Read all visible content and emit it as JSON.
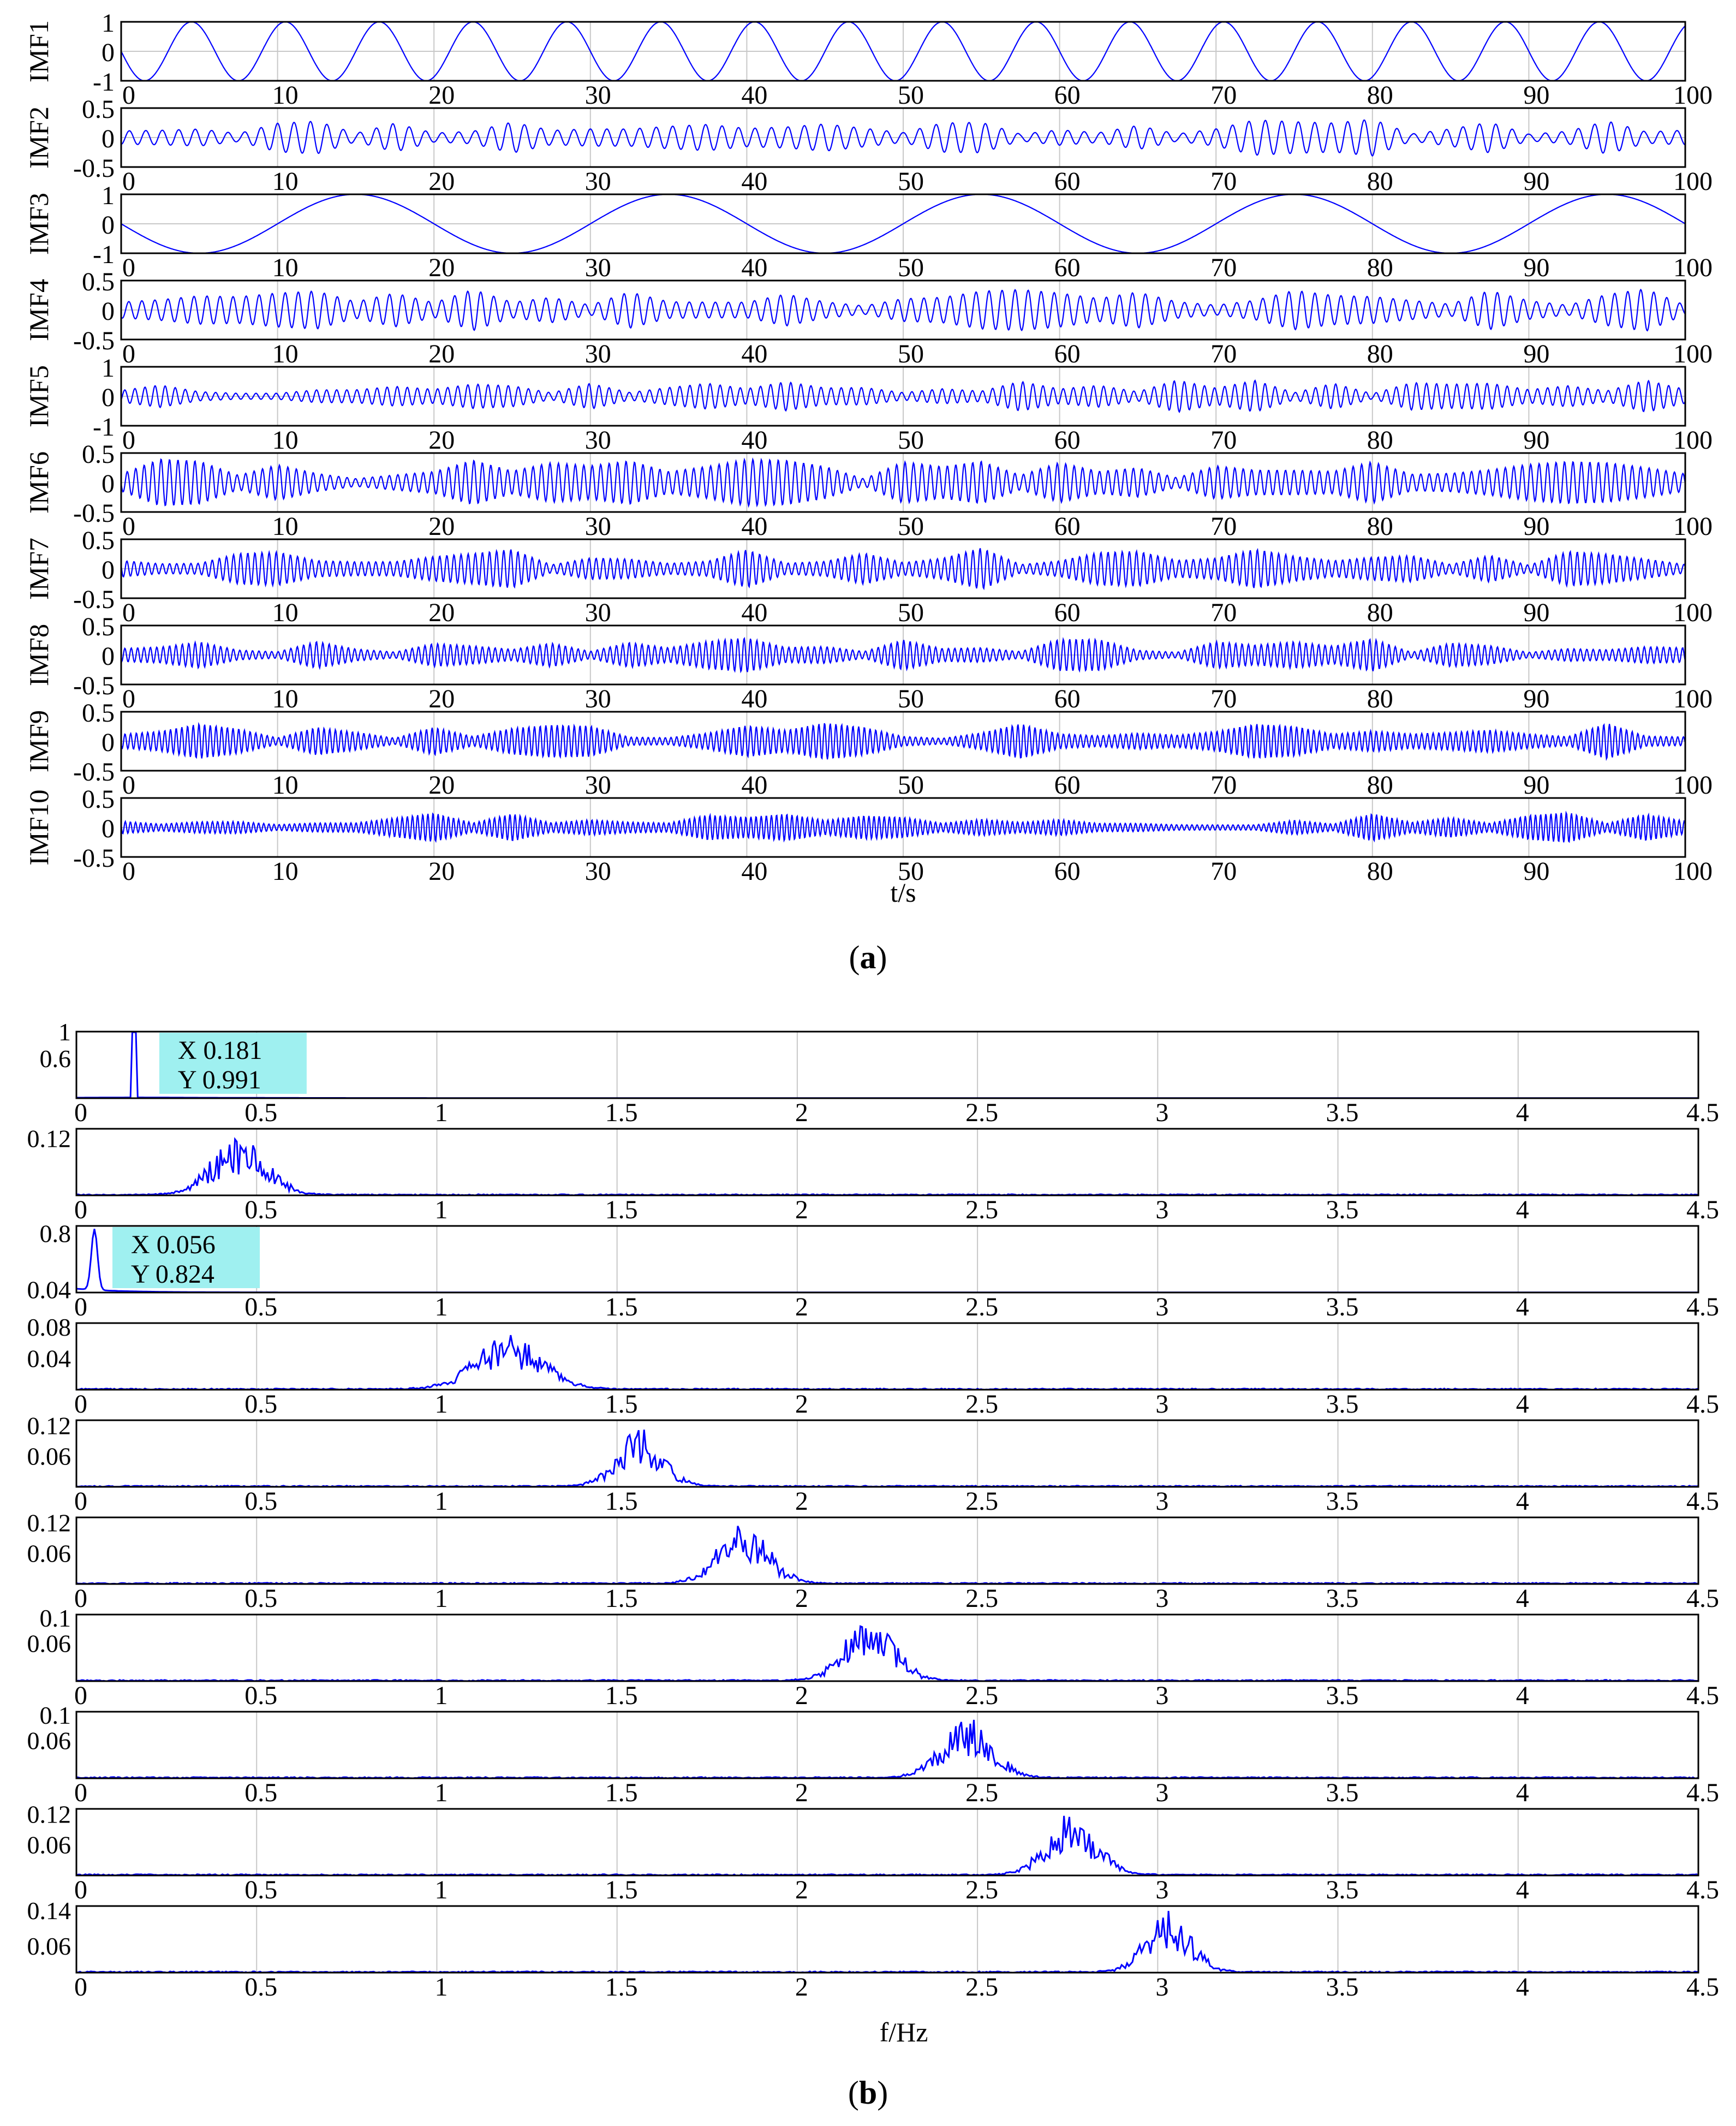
{
  "captions": {
    "a": "a",
    "b": "b"
  },
  "colors": {
    "signal": "#0000ff",
    "grid": "#c8c8c8",
    "axis": "#000000",
    "datatip": "#9ff0f0"
  },
  "chart_data": [
    {
      "type": "line",
      "id": "a",
      "xlabel": "t/s",
      "xlim": [
        0,
        100
      ],
      "xticks": [
        0,
        10,
        20,
        30,
        40,
        50,
        60,
        70,
        80,
        90,
        100
      ],
      "grid": true,
      "series": [
        {
          "name": "IMF1",
          "ylim": [
            -1,
            1
          ],
          "yticks": [
            "1",
            "0",
            "-1"
          ],
          "kind": "sine",
          "period": 6,
          "amp": 1
        },
        {
          "name": "IMF2",
          "ylim": [
            -0.5,
            0.5
          ],
          "yticks": [
            "0.5",
            "0",
            "-0.5"
          ],
          "kind": "am",
          "carrier": 0.95,
          "amp": 0.32,
          "seed": 11
        },
        {
          "name": "IMF3",
          "ylim": [
            -1,
            1
          ],
          "yticks": [
            "1",
            "0",
            "-1"
          ],
          "kind": "sine",
          "period": 20,
          "amp": 1
        },
        {
          "name": "IMF4",
          "ylim": [
            -0.5,
            0.5
          ],
          "yticks": [
            "0.5",
            "0",
            "-0.5"
          ],
          "kind": "am",
          "carrier": 1.2,
          "amp": 0.38,
          "seed": 23
        },
        {
          "name": "IMF5",
          "ylim": [
            -1,
            1
          ],
          "yticks": [
            "1",
            "0",
            "-1"
          ],
          "kind": "am",
          "carrier": 1.55,
          "amp": 0.55,
          "seed": 37
        },
        {
          "name": "IMF6",
          "ylim": [
            -0.5,
            0.5
          ],
          "yticks": [
            "0.5",
            "0",
            "-0.5"
          ],
          "kind": "am",
          "carrier": 1.85,
          "amp": 0.4,
          "seed": 41
        },
        {
          "name": "IMF7",
          "ylim": [
            -0.5,
            0.5
          ],
          "yticks": [
            "0.5",
            "0",
            "-0.5"
          ],
          "kind": "am",
          "carrier": 2.2,
          "amp": 0.38,
          "seed": 53
        },
        {
          "name": "IMF8",
          "ylim": [
            -0.5,
            0.5
          ],
          "yticks": [
            "0.5",
            "0",
            "-0.5"
          ],
          "kind": "am",
          "carrier": 2.45,
          "amp": 0.3,
          "seed": 67
        },
        {
          "name": "IMF9",
          "ylim": [
            -0.5,
            0.5
          ],
          "yticks": [
            "0.5",
            "0",
            "-0.5"
          ],
          "kind": "am",
          "carrier": 2.75,
          "amp": 0.32,
          "seed": 79
        },
        {
          "name": "IMF10",
          "ylim": [
            -0.5,
            0.5
          ],
          "yticks": [
            "0.5",
            "0",
            "-0.5"
          ],
          "kind": "am",
          "carrier": 3.05,
          "amp": 0.28,
          "seed": 97
        }
      ]
    },
    {
      "type": "line",
      "id": "b",
      "xlabel": "f/Hz",
      "xlim": [
        0,
        4.5
      ],
      "xticks": [
        0,
        0.5,
        1,
        1.5,
        2,
        2.5,
        3,
        3.5,
        4,
        4.5
      ],
      "xticklabels": [
        "0",
        "0.5",
        "1",
        "1.5",
        "2",
        "2.5",
        "3",
        "3.5",
        "4",
        "4.5"
      ],
      "grid": true,
      "series": [
        {
          "ymax": 1,
          "yticks": [
            {
              "v": 1,
              "t": "1"
            },
            {
              "v": 0.6,
              "t": "0.6"
            }
          ],
          "kind": "spike",
          "f0": 0.16,
          "peak": 0.991,
          "datatip": {
            "x": "X 0.181",
            "y": "Y 0.991"
          }
        },
        {
          "ymax": 0.14,
          "yticks": [
            {
              "v": 0.12,
              "t": "0.12"
            }
          ],
          "kind": "band",
          "center": 0.45,
          "width": 0.11,
          "peak": 0.12,
          "seed": 5
        },
        {
          "ymax": 0.9,
          "yticks": [
            {
              "v": 0.8,
              "t": "0.8"
            },
            {
              "v": 0.04,
              "t": "0.04"
            }
          ],
          "kind": "lowspike",
          "f0": 0.05,
          "peak": 0.824,
          "datatip": {
            "x": "X 0.056",
            "y": "Y 0.824"
          }
        },
        {
          "ymax": 0.085,
          "yticks": [
            {
              "v": 0.08,
              "t": "0.08"
            },
            {
              "v": 0.04,
              "t": "0.04"
            }
          ],
          "kind": "band",
          "center": 1.2,
          "width": 0.13,
          "peak": 0.075,
          "seed": 9
        },
        {
          "ymax": 0.13,
          "yticks": [
            {
              "v": 0.12,
              "t": "0.12"
            },
            {
              "v": 0.06,
              "t": "0.06"
            }
          ],
          "kind": "band",
          "center": 1.56,
          "width": 0.09,
          "peak": 0.115,
          "seed": 13
        },
        {
          "ymax": 0.13,
          "yticks": [
            {
              "v": 0.12,
              "t": "0.12"
            },
            {
              "v": 0.06,
              "t": "0.06"
            }
          ],
          "kind": "band",
          "center": 1.85,
          "width": 0.1,
          "peak": 0.12,
          "seed": 17
        },
        {
          "ymax": 0.105,
          "yticks": [
            {
              "v": 0.1,
              "t": "0.1"
            },
            {
              "v": 0.06,
              "t": "0.06"
            }
          ],
          "kind": "band",
          "center": 2.2,
          "width": 0.1,
          "peak": 0.1,
          "seed": 21
        },
        {
          "ymax": 0.105,
          "yticks": [
            {
              "v": 0.1,
              "t": "0.1"
            },
            {
              "v": 0.06,
              "t": "0.06"
            }
          ],
          "kind": "band",
          "center": 2.47,
          "width": 0.1,
          "peak": 0.1,
          "seed": 29
        },
        {
          "ymax": 0.13,
          "yticks": [
            {
              "v": 0.12,
              "t": "0.12"
            },
            {
              "v": 0.06,
              "t": "0.06"
            }
          ],
          "kind": "band",
          "center": 2.76,
          "width": 0.1,
          "peak": 0.12,
          "seed": 31
        },
        {
          "ymax": 0.15,
          "yticks": [
            {
              "v": 0.14,
              "t": "0.14"
            },
            {
              "v": 0.06,
              "t": "0.06"
            }
          ],
          "kind": "band",
          "center": 3.03,
          "width": 0.09,
          "peak": 0.14,
          "seed": 43
        }
      ]
    }
  ]
}
